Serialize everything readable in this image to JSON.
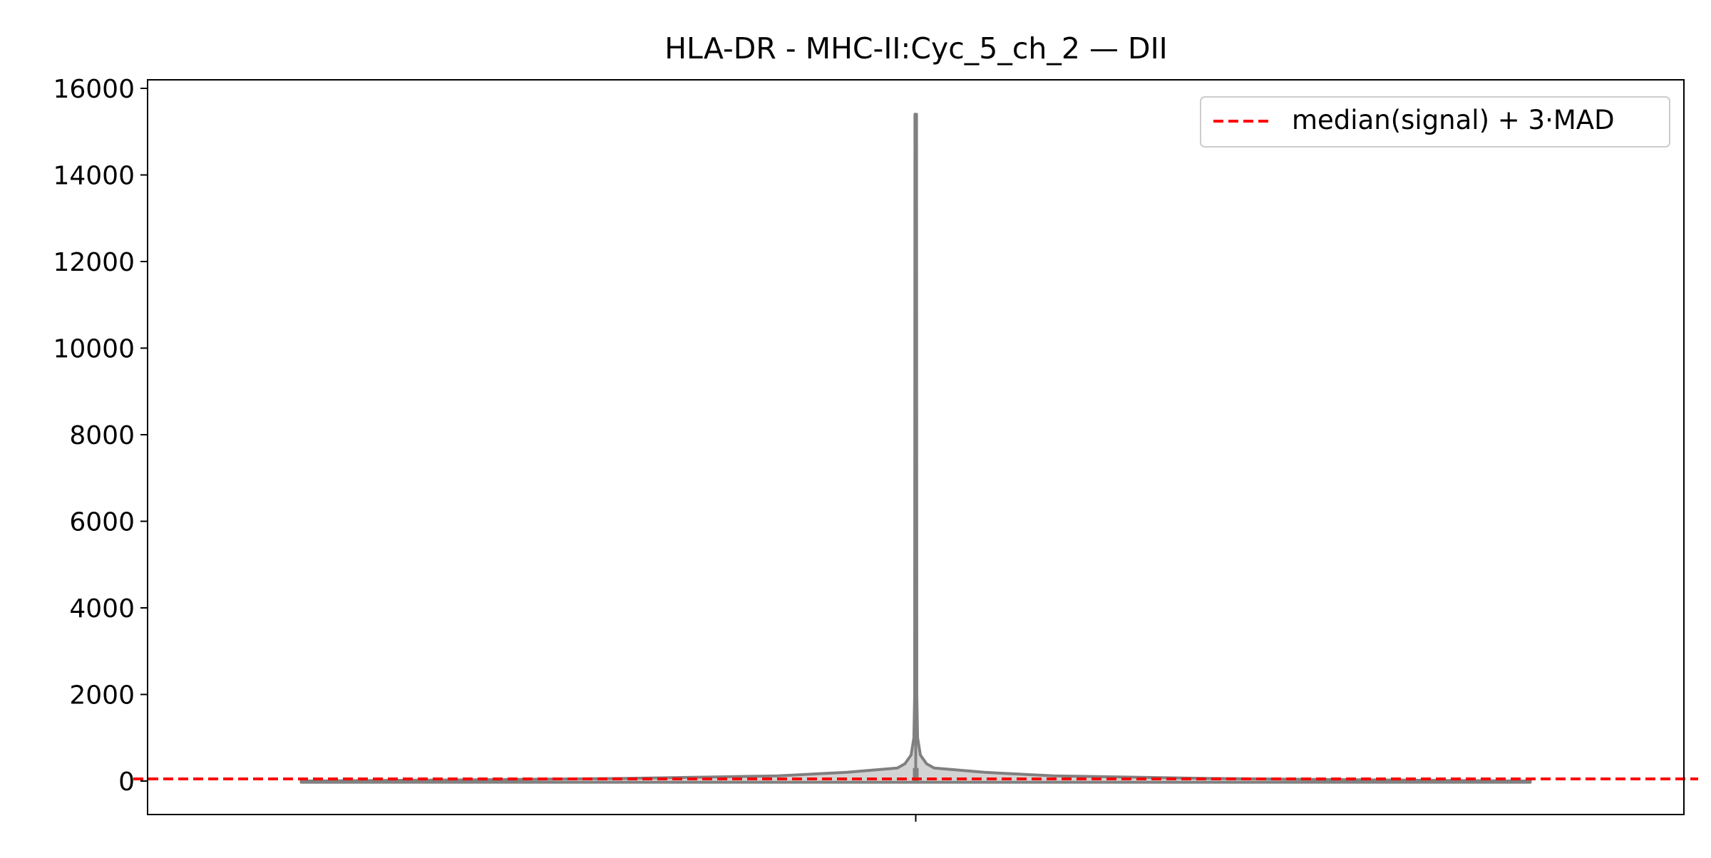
{
  "chart_data": {
    "type": "violin",
    "title": "HLA-DR - MHC-II:Cyc_5_ch_2 — DII",
    "xlabel": "",
    "ylabel": "",
    "ylim": [
      -800,
      16200
    ],
    "yticks": [
      0,
      2000,
      4000,
      6000,
      8000,
      10000,
      12000,
      14000,
      16000
    ],
    "xticks": [
      ""
    ],
    "grid": false,
    "legend_placement": "upper-right",
    "violin": {
      "min": -30,
      "max": 15400,
      "fill_color": "#d3d3d3",
      "edge_color": "#808080",
      "profile": [
        {
          "y": -30,
          "half_width": 0.4
        },
        {
          "y": 0,
          "half_width": 0.4
        },
        {
          "y": 20,
          "half_width": 0.32
        },
        {
          "y": 60,
          "half_width": 0.19
        },
        {
          "y": 120,
          "half_width": 0.09
        },
        {
          "y": 200,
          "half_width": 0.045
        },
        {
          "y": 300,
          "half_width": 0.012
        },
        {
          "y": 400,
          "half_width": 0.007
        },
        {
          "y": 600,
          "half_width": 0.003
        },
        {
          "y": 1000,
          "half_width": 0.0012
        },
        {
          "y": 2000,
          "half_width": 0.0007
        },
        {
          "y": 15400,
          "half_width": 0.0005
        }
      ]
    },
    "threshold": {
      "value": 50,
      "color": "#ff0000",
      "label": "median(signal) + 3·MAD"
    }
  }
}
